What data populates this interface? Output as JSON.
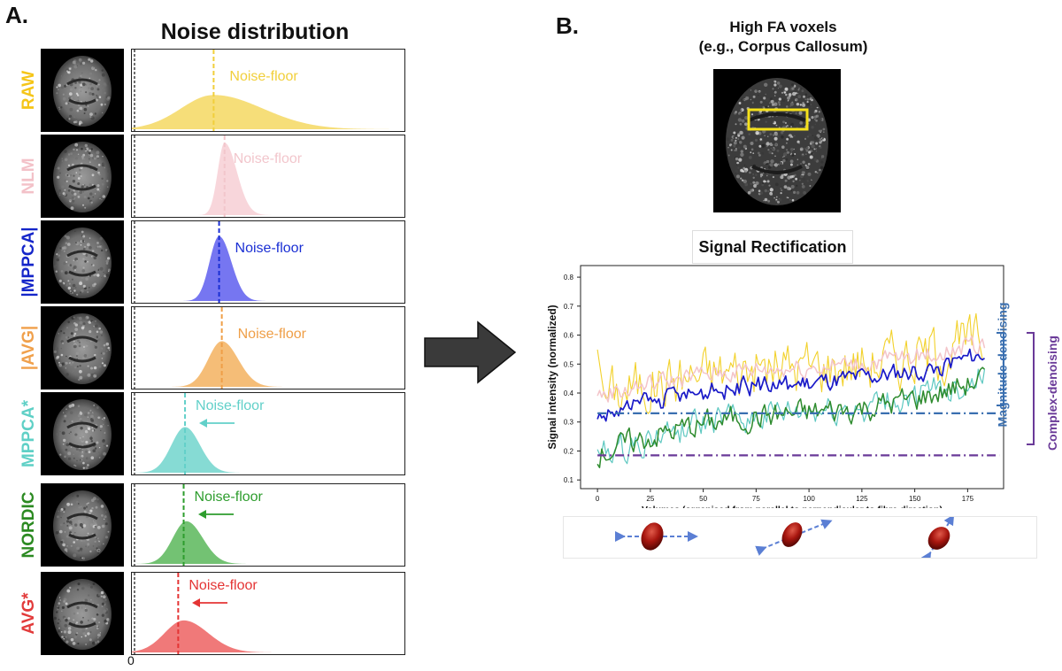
{
  "panel_a": {
    "letter": "A.",
    "title": "Noise distribution",
    "zero_label": "0",
    "noise_floor_label": "Noise-floor",
    "rows": [
      {
        "name": "RAW",
        "color": "#f1cf3b",
        "fill": "#f6dc72",
        "noise_floor": 0.3,
        "peak": 0.3,
        "sigma_l": 0.12,
        "sigma_r": 0.18,
        "height": 0.45,
        "arrow": false
      },
      {
        "name": "NLM",
        "color": "#f2c6cc",
        "fill": "#f8d4d9",
        "noise_floor": 0.34,
        "peak": 0.34,
        "sigma_l": 0.025,
        "sigma_r": 0.045,
        "height": 0.95,
        "arrow": false
      },
      {
        "name": "|MPPCA|",
        "color": "#1a2fd4",
        "fill": "#6f6ff0",
        "noise_floor": 0.32,
        "peak": 0.32,
        "sigma_l": 0.035,
        "sigma_r": 0.045,
        "height": 0.85,
        "arrow": false
      },
      {
        "name": "|AVG|",
        "color": "#ef9f48",
        "fill": "#f4b970",
        "noise_floor": 0.33,
        "peak": 0.33,
        "sigma_l": 0.05,
        "sigma_r": 0.06,
        "height": 0.6,
        "arrow": false
      },
      {
        "name": "MPPCA*",
        "color": "#62d0c9",
        "fill": "#7fd9d2",
        "noise_floor": 0.195,
        "peak": 0.195,
        "sigma_l": 0.05,
        "sigma_r": 0.055,
        "height": 0.6,
        "arrow": true
      },
      {
        "name": "NORDIC",
        "color": "#2e9d2e",
        "fill": "#6cbf6c",
        "noise_floor": 0.19,
        "peak": 0.2,
        "sigma_l": 0.05,
        "sigma_r": 0.06,
        "height": 0.56,
        "arrow": true
      },
      {
        "name": "AVG*",
        "color": "#e43434",
        "fill": "#ef7272",
        "noise_floor": 0.17,
        "peak": 0.19,
        "sigma_l": 0.07,
        "sigma_r": 0.09,
        "height": 0.42,
        "arrow": true
      }
    ],
    "label_colors": {
      "RAW": "#f5c518",
      "NLM": "#f3c1c8",
      "|MPPCA|": "#1526c9",
      "|AVG|": "#f0a04b",
      "MPPCA*": "#5fd0c6",
      "NORDIC": "#2c8a22",
      "AVG*": "#e23b3b"
    }
  },
  "panel_b": {
    "letter": "B.",
    "heading_line1": "High FA voxels",
    "heading_line2": "(e.g., Corpus Callosum)",
    "roi_color": "#f5e11b",
    "rect_title": "Signal Rectification",
    "magnitude_label": "Magnitude-denoising",
    "complex_label": "Complex-denoising",
    "magnitude_color": "#3a6fb0",
    "complex_color": "#6a3a98"
  },
  "chart_data": {
    "type": "line",
    "title": "Signal Rectification",
    "xlabel": "Volumes (organised from parallel to perpendicular to fibre direction)",
    "ylabel": "Signal intensity (normalized)",
    "xlim": [
      -8,
      192
    ],
    "ylim": [
      0.07,
      0.84
    ],
    "xticks": [
      0,
      25,
      50,
      75,
      100,
      125,
      150,
      175
    ],
    "yticks": [
      0.1,
      0.2,
      0.3,
      0.4,
      0.5,
      0.6,
      0.7,
      0.8
    ],
    "n_points": 184,
    "series": [
      {
        "name": "RAW",
        "color": "#f2d12b",
        "start": 0.39,
        "end": 0.61,
        "noise": 0.085,
        "width": 1.1
      },
      {
        "name": "NLM",
        "color": "#f3c4c9",
        "start": 0.39,
        "end": 0.6,
        "noise": 0.03,
        "width": 1.5
      },
      {
        "name": "MPPCA*",
        "color": "#5ec8c1",
        "start": 0.18,
        "end": 0.5,
        "noise": 0.045,
        "width": 1.2
      },
      {
        "name": "NORDIC",
        "color": "#2e8b2e",
        "start": 0.19,
        "end": 0.49,
        "noise": 0.04,
        "width": 1.5
      },
      {
        "name": "|MPPCA|",
        "color": "#1a1ac8",
        "start": 0.32,
        "end": 0.56,
        "noise": 0.03,
        "width": 1.7
      }
    ],
    "reference_lines": [
      {
        "name": "magnitude noise floor",
        "y": 0.33,
        "color": "#3a6fb0"
      },
      {
        "name": "complex noise floor",
        "y": 0.185,
        "color": "#6a3a98"
      }
    ]
  }
}
